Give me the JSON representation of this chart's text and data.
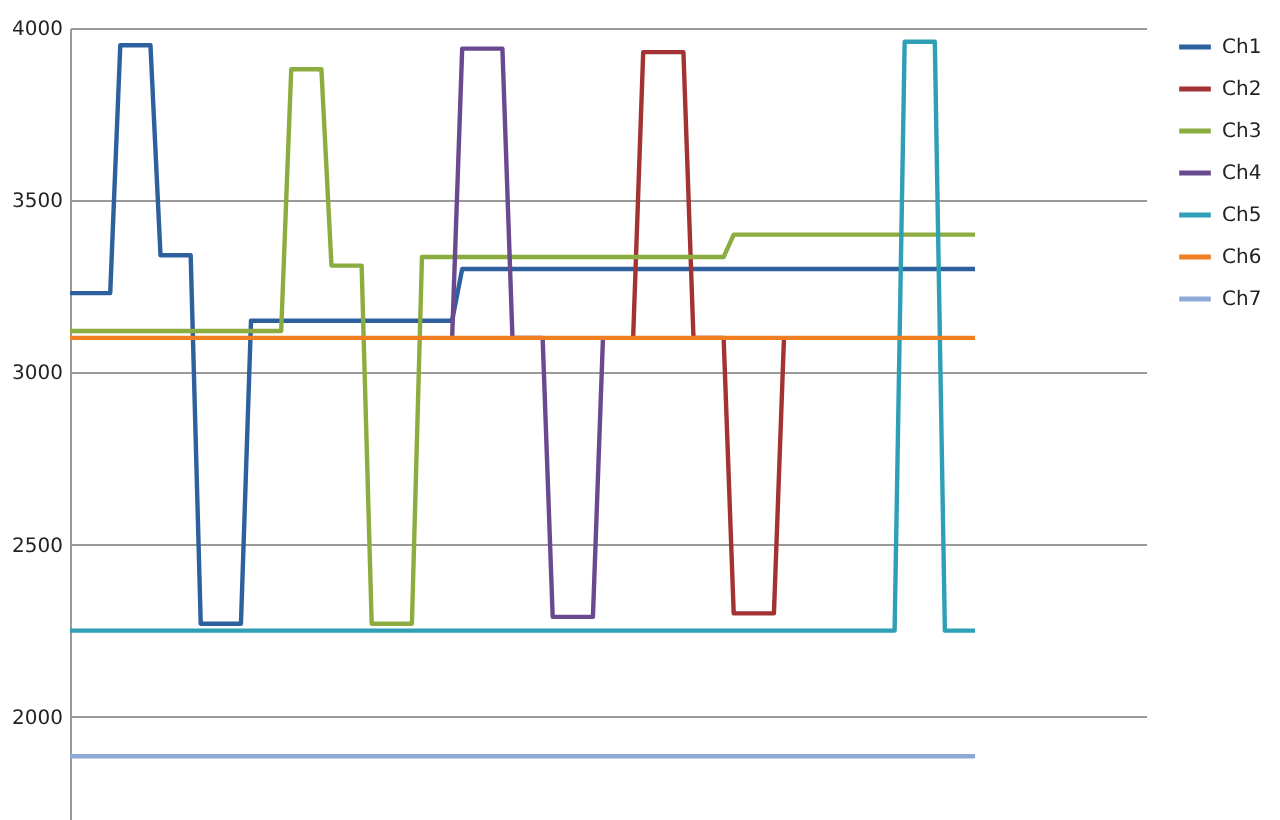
{
  "chart_data": {
    "type": "line",
    "categories": [
      null,
      null,
      null,
      null,
      null,
      null,
      null,
      null,
      null,
      null,
      null,
      null,
      null,
      null,
      null,
      null,
      null,
      null,
      null,
      null,
      null,
      null,
      null,
      null,
      null,
      null,
      null,
      null,
      null,
      null,
      null,
      null,
      null,
      null,
      null,
      null,
      null,
      null,
      null,
      null,
      null,
      null,
      null,
      null,
      null,
      null,
      null,
      null,
      null,
      null,
      null,
      null,
      null,
      null,
      null,
      null,
      null,
      null,
      null,
      null,
      null,
      null,
      null,
      null,
      null,
      null,
      null,
      null,
      null,
      null,
      null,
      null,
      null,
      null,
      null,
      null,
      null,
      null,
      null,
      null,
      null,
      null,
      null,
      null,
      null,
      null,
      null,
      null,
      null,
      null,
      null,
      null,
      null,
      null,
      null,
      null,
      null,
      null,
      null,
      null,
      null,
      null,
      null,
      null,
      null,
      null,
      null,
      null
    ],
    "series": [
      {
        "name": "Ch1",
        "color": "#2e5f9e",
        "values": [
          3230,
          3230,
          3230,
          3230,
          3230,
          3950,
          3950,
          3950,
          3950,
          3340,
          3340,
          3340,
          3340,
          2270,
          2270,
          2270,
          2270,
          2270,
          3150,
          3150,
          3150,
          3150,
          3150,
          3150,
          3150,
          3150,
          3150,
          3150,
          3150,
          3150,
          3150,
          3150,
          3150,
          3150,
          3150,
          3150,
          3150,
          3150,
          3150,
          3300,
          3300,
          3300,
          3300,
          3300,
          3300,
          3300,
          3300,
          3300,
          3300,
          3300,
          3300,
          3300,
          3300,
          3300,
          3300,
          3300,
          3300,
          3300,
          3300,
          3300,
          3300,
          3300,
          3300,
          3300,
          3300,
          3300,
          3300,
          3300,
          3300,
          3300,
          3300,
          3300,
          3300,
          3300,
          3300,
          3300,
          3300,
          3300,
          3300,
          3300,
          3300,
          3300,
          3300,
          3300,
          3300,
          3300,
          3300,
          3300,
          3300,
          3300,
          3300,
          null,
          null,
          null,
          null,
          null,
          null,
          null,
          null,
          null,
          null,
          null,
          null,
          null,
          null,
          null,
          null,
          null
        ]
      },
      {
        "name": "Ch2",
        "color": "#a33232",
        "values": [
          null,
          null,
          null,
          null,
          null,
          null,
          null,
          null,
          null,
          null,
          null,
          null,
          null,
          null,
          null,
          null,
          null,
          null,
          null,
          null,
          null,
          null,
          null,
          null,
          null,
          null,
          null,
          null,
          null,
          null,
          null,
          null,
          null,
          null,
          null,
          null,
          null,
          null,
          null,
          null,
          null,
          null,
          null,
          null,
          null,
          null,
          null,
          null,
          null,
          null,
          null,
          null,
          null,
          null,
          null,
          null,
          3100,
          3930,
          3930,
          3930,
          3930,
          3930,
          3100,
          3100,
          3100,
          3100,
          2300,
          2300,
          2300,
          2300,
          2300,
          3100,
          null,
          null,
          null,
          null,
          null,
          null,
          null,
          null,
          null,
          null,
          null,
          null,
          null,
          null,
          null,
          null,
          null,
          null,
          null,
          null,
          null,
          null,
          null,
          null,
          null,
          null,
          null,
          null,
          null,
          null,
          null,
          null,
          null,
          null,
          null,
          null
        ]
      },
      {
        "name": "Ch3",
        "color": "#8bad3f",
        "values": [
          3120,
          3120,
          3120,
          3120,
          3120,
          3120,
          3120,
          3120,
          3120,
          3120,
          3120,
          3120,
          3120,
          3120,
          3120,
          3120,
          3120,
          3120,
          3120,
          3120,
          3120,
          3120,
          3880,
          3880,
          3880,
          3880,
          3310,
          3310,
          3310,
          3310,
          2270,
          2270,
          2270,
          2270,
          2270,
          3335,
          3335,
          3335,
          3335,
          3335,
          3335,
          3335,
          3335,
          3335,
          3335,
          3335,
          3335,
          3335,
          3335,
          3335,
          3335,
          3335,
          3335,
          3335,
          3335,
          3335,
          3335,
          3335,
          3335,
          3335,
          3335,
          3335,
          3335,
          3335,
          3335,
          3335,
          3400,
          3400,
          3400,
          3400,
          3400,
          3400,
          3400,
          3400,
          3400,
          3400,
          3400,
          3400,
          3400,
          3400,
          3400,
          3400,
          3400,
          3400,
          3400,
          3400,
          3400,
          3400,
          3400,
          3400,
          3400,
          null,
          null,
          null,
          null,
          null,
          null,
          null,
          null,
          null,
          null,
          null,
          null,
          null,
          null,
          null,
          null,
          null
        ]
      },
      {
        "name": "Ch4",
        "color": "#6a4a8e",
        "values": [
          null,
          null,
          null,
          null,
          null,
          null,
          null,
          null,
          null,
          null,
          null,
          null,
          null,
          null,
          null,
          null,
          null,
          null,
          null,
          null,
          null,
          null,
          null,
          null,
          null,
          null,
          null,
          null,
          null,
          null,
          null,
          null,
          null,
          null,
          null,
          null,
          null,
          null,
          3100,
          3940,
          3940,
          3940,
          3940,
          3940,
          3100,
          3100,
          3100,
          3100,
          2290,
          2290,
          2290,
          2290,
          2290,
          3100,
          null,
          null,
          null,
          null,
          null,
          null,
          null,
          null,
          null,
          null,
          null,
          null,
          null,
          null,
          null,
          null,
          null,
          null,
          null,
          null,
          null,
          null,
          null,
          null,
          null,
          null,
          null,
          null,
          null,
          null,
          null,
          null,
          null,
          null,
          null,
          null,
          null,
          null,
          null,
          null,
          null,
          null,
          null,
          null,
          null,
          null,
          null,
          null,
          null,
          null,
          null,
          null,
          null,
          null
        ]
      },
      {
        "name": "Ch5",
        "color": "#2f9fb5",
        "values": [
          2250,
          2250,
          2250,
          2250,
          2250,
          2250,
          2250,
          2250,
          2250,
          2250,
          2250,
          2250,
          2250,
          2250,
          2250,
          2250,
          2250,
          2250,
          2250,
          2250,
          2250,
          2250,
          2250,
          2250,
          2250,
          2250,
          2250,
          2250,
          2250,
          2250,
          2250,
          2250,
          2250,
          2250,
          2250,
          2250,
          2250,
          2250,
          2250,
          2250,
          2250,
          2250,
          2250,
          2250,
          2250,
          2250,
          2250,
          2250,
          2250,
          2250,
          2250,
          2250,
          2250,
          2250,
          2250,
          2250,
          2250,
          2250,
          2250,
          2250,
          2250,
          2250,
          2250,
          2250,
          2250,
          2250,
          2250,
          2250,
          2250,
          2250,
          2250,
          2250,
          2250,
          2250,
          2250,
          2250,
          2250,
          2250,
          2250,
          2250,
          2250,
          2250,
          2250,
          3960,
          3960,
          3960,
          3960,
          2250,
          2250,
          2250,
          2250,
          null,
          null,
          null,
          null,
          null,
          null,
          null,
          null,
          null,
          null,
          null,
          null,
          null,
          null,
          null,
          null,
          null
        ]
      },
      {
        "name": "Ch6",
        "color": "#f07f22",
        "values": [
          3100,
          3100,
          3100,
          3100,
          3100,
          3100,
          3100,
          3100,
          3100,
          3100,
          3100,
          3100,
          3100,
          3100,
          3100,
          3100,
          3100,
          3100,
          3100,
          3100,
          3100,
          3100,
          3100,
          3100,
          3100,
          3100,
          3100,
          3100,
          3100,
          3100,
          3100,
          3100,
          3100,
          3100,
          3100,
          3100,
          3100,
          3100,
          3100,
          3100,
          3100,
          3100,
          3100,
          3100,
          3100,
          3100,
          3100,
          3100,
          3100,
          3100,
          3100,
          3100,
          3100,
          3100,
          3100,
          3100,
          3100,
          3100,
          3100,
          3100,
          3100,
          3100,
          3100,
          3100,
          3100,
          3100,
          3100,
          3100,
          3100,
          3100,
          3100,
          3100,
          3100,
          3100,
          3100,
          3100,
          3100,
          3100,
          3100,
          3100,
          3100,
          3100,
          3100,
          3100,
          3100,
          3100,
          3100,
          3100,
          3100,
          3100,
          3100,
          null,
          null,
          null,
          null,
          null,
          null,
          null,
          null,
          null,
          null,
          null,
          null,
          null,
          null,
          null,
          null,
          null
        ]
      },
      {
        "name": "Ch7",
        "color": "#8ea9d6",
        "values": [
          1885,
          1885,
          1885,
          1885,
          1885,
          1885,
          1885,
          1885,
          1885,
          1885,
          1885,
          1885,
          1885,
          1885,
          1885,
          1885,
          1885,
          1885,
          1885,
          1885,
          1885,
          1885,
          1885,
          1885,
          1885,
          1885,
          1885,
          1885,
          1885,
          1885,
          1885,
          1885,
          1885,
          1885,
          1885,
          1885,
          1885,
          1885,
          1885,
          1885,
          1885,
          1885,
          1885,
          1885,
          1885,
          1885,
          1885,
          1885,
          1885,
          1885,
          1885,
          1885,
          1885,
          1885,
          1885,
          1885,
          1885,
          1885,
          1885,
          1885,
          1885,
          1885,
          1885,
          1885,
          1885,
          1885,
          1885,
          1885,
          1885,
          1885,
          1885,
          1885,
          1885,
          1885,
          1885,
          1885,
          1885,
          1885,
          1885,
          1885,
          1885,
          1885,
          1885,
          1885,
          1885,
          1885,
          1885,
          1885,
          1885,
          1885,
          1885,
          null,
          null,
          null,
          null,
          null,
          null,
          null,
          null,
          null,
          null,
          null,
          null,
          null,
          null,
          null,
          null,
          null
        ]
      }
    ],
    "ylim": [
      1700,
      4000
    ],
    "yticks": [
      2000,
      2500,
      3000,
      3500,
      4000
    ],
    "grid": "y",
    "legend": "right",
    "tick_labels": "y"
  }
}
